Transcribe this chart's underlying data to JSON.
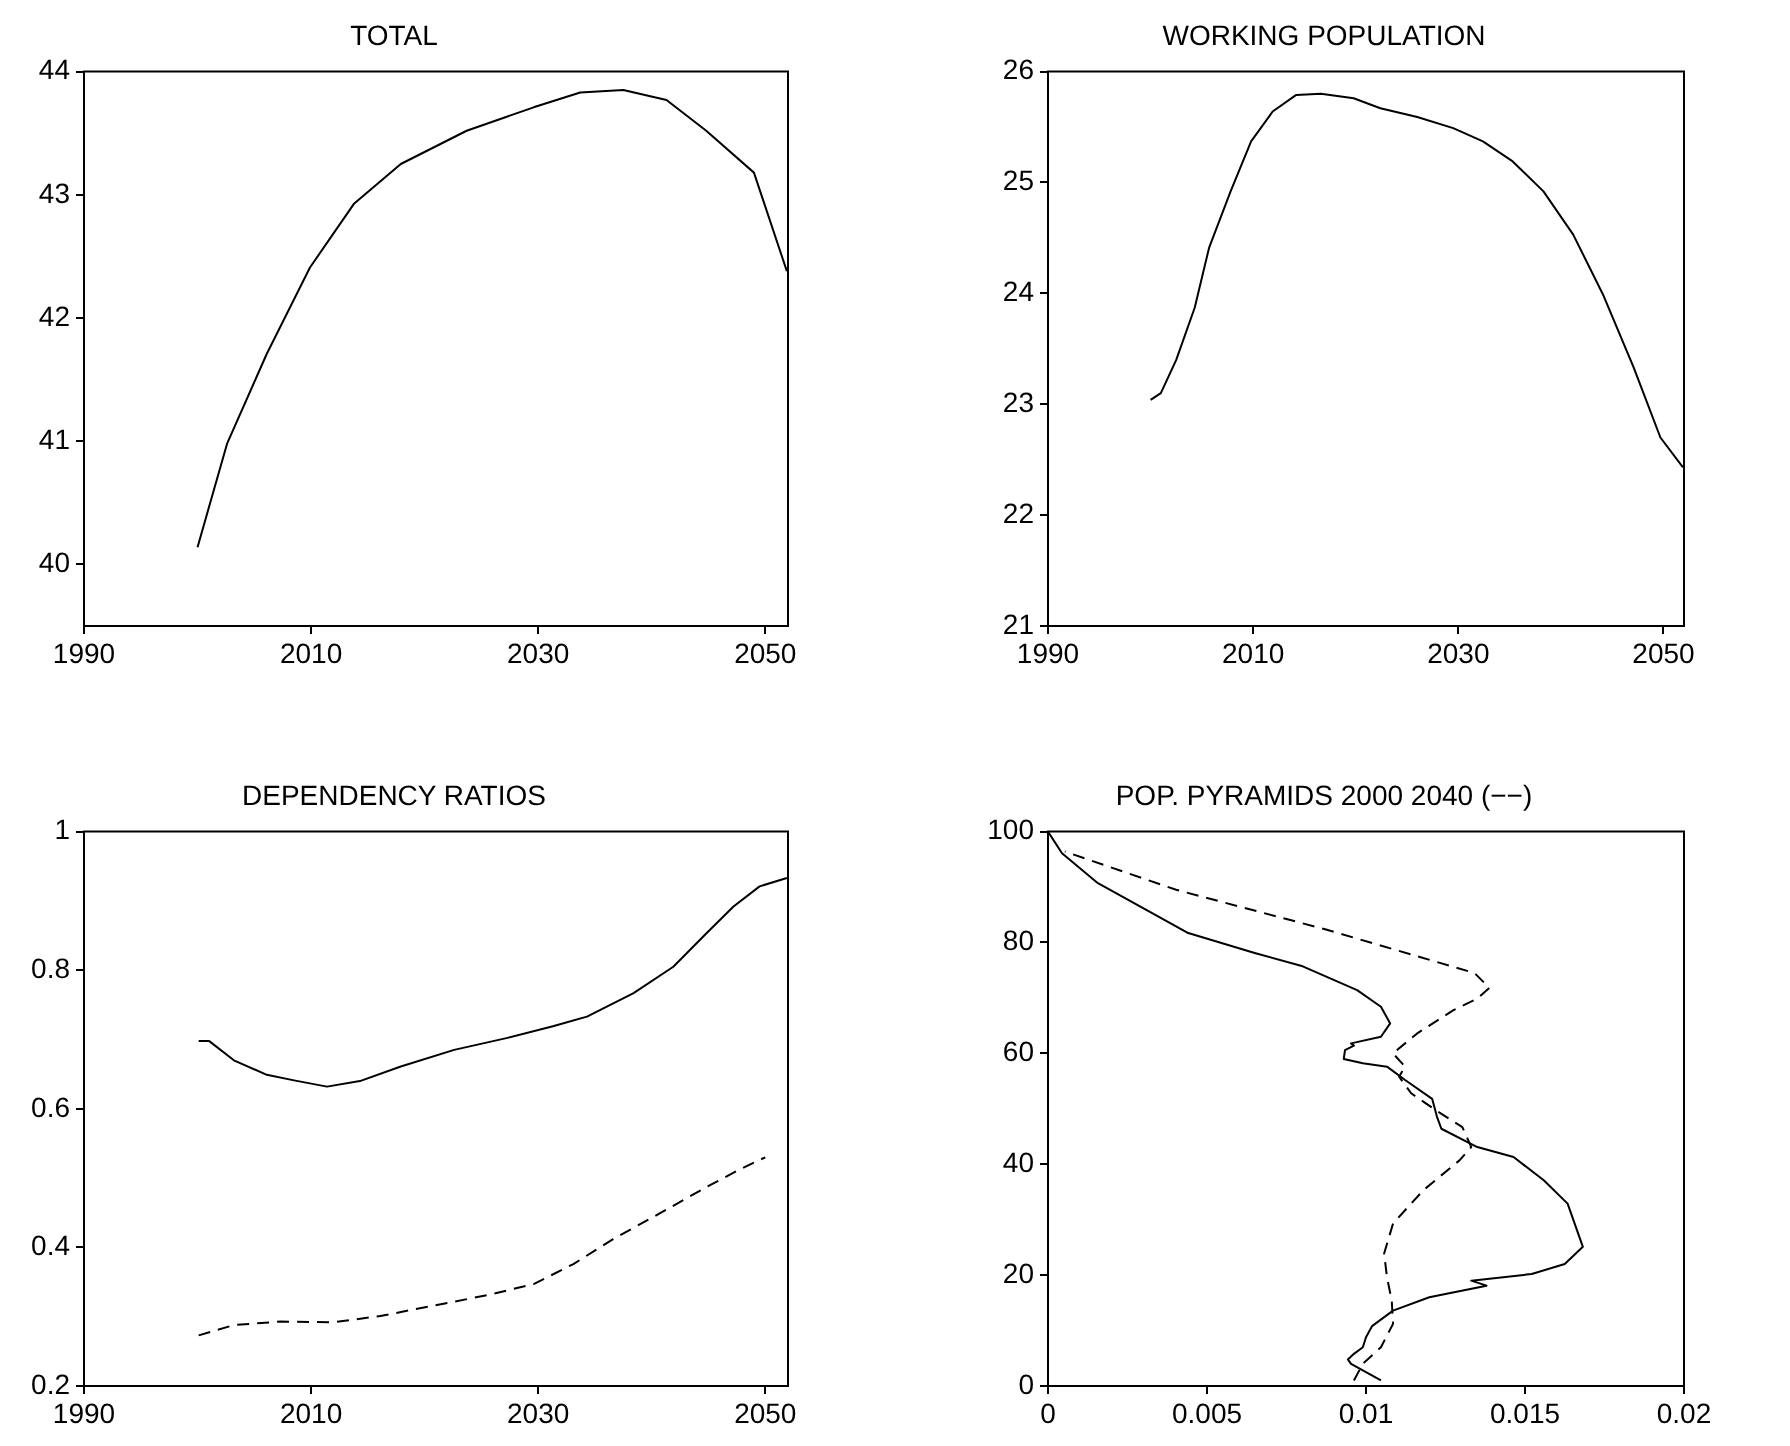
{
  "chart_data": [
    {
      "type": "line",
      "title": "TOTAL",
      "xlim": [
        1990,
        2052
      ],
      "xticks": [
        1990,
        2010,
        2030,
        2050
      ],
      "ylim": [
        39.5,
        44
      ],
      "yticks": [
        40,
        41,
        42,
        43,
        44
      ],
      "marker": "none",
      "line_style": "solid",
      "series": [
        {
          "color": "#000000",
          "x": [
            2000,
            2002.6,
            2006.1,
            2009.9,
            2013.8,
            2017.9,
            2023.7,
            2029.6,
            2033.7,
            2037.5,
            2041.3,
            2044.8,
            2049,
            2051.9
          ],
          "values": [
            40.14,
            40.98,
            41.71,
            42.41,
            42.93,
            43.25,
            43.52,
            43.71,
            43.83,
            43.85,
            43.77,
            43.52,
            43.18,
            42.38
          ]
        }
      ]
    },
    {
      "type": "line",
      "title": "WORKING POPULATION",
      "xlim": [
        1990,
        2052
      ],
      "xticks": [
        1990,
        2010,
        2030,
        2050
      ],
      "ylim": [
        21,
        26
      ],
      "yticks": [
        21,
        22,
        23,
        24,
        25,
        26
      ],
      "marker": "none",
      "line_style": "solid",
      "series": [
        {
          "color": "#000000",
          "x": [
            2000,
            2001,
            2002.5,
            2004.3,
            2005.7,
            2007.8,
            2009.8,
            2011.9,
            2014.2,
            2016.6,
            2019.8,
            2022.4,
            2026,
            2029.5,
            2032.4,
            2035.3,
            2038.3,
            2041.2,
            2044.1,
            2047.1,
            2049.7,
            2051.9
          ],
          "values": [
            23.04,
            23.1,
            23.4,
            23.87,
            24.41,
            24.92,
            25.37,
            25.64,
            25.79,
            25.8,
            25.76,
            25.67,
            25.59,
            25.49,
            25.37,
            25.19,
            24.92,
            24.53,
            23.99,
            23.33,
            22.7,
            22.43
          ]
        }
      ]
    },
    {
      "type": "line",
      "title": "DEPENDENCY RATIOS",
      "xlim": [
        1990,
        2052
      ],
      "xticks": [
        1990,
        2010,
        2030,
        2050
      ],
      "ylim": [
        0.2,
        1
      ],
      "yticks": [
        0.2,
        0.4,
        0.6,
        0.8,
        1
      ],
      "marker": "none",
      "series": [
        {
          "color": "#000000",
          "line_style": "solid",
          "x": [
            2000.1,
            2001,
            2003.2,
            2006.1,
            2008.5,
            2011.4,
            2014.3,
            2017.9,
            2022.6,
            2027.2,
            2031.3,
            2034.3,
            2038.4,
            2041.9,
            2044.8,
            2047.2,
            2049.5,
            2051.9
          ],
          "values": [
            0.698,
            0.698,
            0.67,
            0.649,
            0.641,
            0.632,
            0.64,
            0.661,
            0.685,
            0.702,
            0.719,
            0.733,
            0.767,
            0.805,
            0.853,
            0.892,
            0.921,
            0.933
          ]
        },
        {
          "color": "#000000",
          "line_style": "dashed",
          "x": [
            2000.1,
            2003.2,
            2007.3,
            2012,
            2016.1,
            2020.8,
            2025.5,
            2029.6,
            2033.1,
            2036.6,
            2040.7,
            2044.8,
            2047.8,
            2050
          ],
          "values": [
            0.273,
            0.288,
            0.293,
            0.292,
            0.301,
            0.316,
            0.331,
            0.347,
            0.376,
            0.412,
            0.449,
            0.487,
            0.513,
            0.53
          ]
        }
      ]
    },
    {
      "type": "line",
      "title": "POP. PYRAMIDS 2000 2040 (−−)",
      "xlim": [
        0,
        0.02
      ],
      "xticks": [
        0,
        0.005,
        0.01,
        0.015,
        0.02
      ],
      "ylim": [
        0,
        100
      ],
      "yticks": [
        0,
        20,
        40,
        60,
        80,
        100
      ],
      "marker": "none",
      "series": [
        {
          "color": "#000000",
          "line_style": "solid",
          "x": [
            0.01047,
            0.00953,
            0.00943,
            0.00962,
            0.0099,
            0.01,
            0.01019,
            0.01085,
            0.01199,
            0.01379,
            0.01331,
            0.01521,
            0.01625,
            0.01682,
            0.01634,
            0.01559,
            0.01464,
            0.0135,
            0.01237,
            0.01223,
            0.01208,
            0.01123,
            0.01066,
            0.0099,
            0.0093,
            0.00934,
            0.00962,
            0.00953,
            0.01047,
            0.01076,
            0.01047,
            0.00972,
            0.00801,
            0.0065,
            0.00441,
            0.00309,
            0.00157,
            0.00044,
            0
          ],
          "values": [
            1,
            4,
            4.8,
            5.8,
            7,
            8.8,
            10.8,
            13.6,
            16,
            18.1,
            19,
            20.2,
            22,
            25.1,
            32.9,
            37.1,
            41.3,
            43.1,
            46.4,
            48.6,
            51.8,
            55.2,
            57.6,
            58.2,
            59,
            60.6,
            61.4,
            61.8,
            63,
            65.4,
            68.4,
            71.4,
            75.7,
            78.1,
            81.7,
            85.9,
            90.7,
            96.1,
            100
          ]
        },
        {
          "color": "#000000",
          "line_style": "dashed",
          "x": [
            0.00962,
            0.0099,
            0.01047,
            0.01085,
            0.01081,
            0.01066,
            0.01057,
            0.01085,
            0.0118,
            0.01294,
            0.01331,
            0.01303,
            0.01218,
            0.01142,
            0.01104,
            0.01123,
            0.01085,
            0.01161,
            0.01275,
            0.0135,
            0.01388,
            0.01341,
            0.00877,
            0.00403,
            0.00053
          ],
          "values": [
            1,
            4,
            7,
            11.2,
            15.4,
            19.6,
            23.9,
            29.3,
            35.3,
            40.7,
            43.1,
            46.7,
            49.8,
            52.8,
            55.8,
            57.6,
            60,
            63.6,
            67.8,
            69.9,
            71.8,
            74.5,
            82.3,
            89.5,
            96.4
          ]
        }
      ]
    }
  ]
}
